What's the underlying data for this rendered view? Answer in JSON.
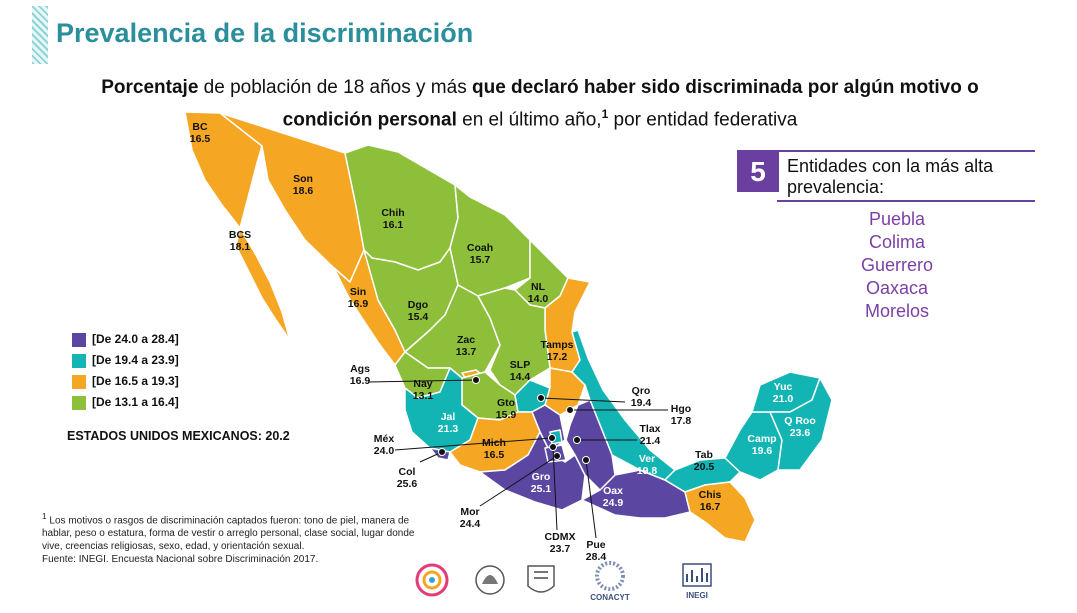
{
  "title": "Prevalencia de la discriminación",
  "subtitle": {
    "p1": "Porcentaje",
    "p2": " de población de 18 años y más ",
    "p3": "que declaró haber sido discriminada por algún motivo o condición personal",
    "p4": " en el último año,",
    "p5": "1",
    "p6": " por entidad federativa"
  },
  "colors": {
    "range1": "#5b47a2",
    "range2": "#13b5b4",
    "range3": "#f5a623",
    "range4": "#8dbf3b",
    "accent": "#6b3fa0",
    "title": "#2a8e9b"
  },
  "legend": [
    {
      "label": "[De 24.0 a 28.4]",
      "color": "#5b47a2"
    },
    {
      "label": "[De 19.4 a 23.9]",
      "color": "#13b5b4"
    },
    {
      "label": "[De 16.5 a 19.3]",
      "color": "#f5a623"
    },
    {
      "label": "[De 13.1 a 16.4]",
      "color": "#8dbf3b"
    }
  ],
  "national": "ESTADOS UNIDOS MEXICANOS: 20.2",
  "panel": {
    "number": "5",
    "heading": "Entidades con la más alta prevalencia:",
    "items": [
      "Puebla",
      "Colima",
      "Guerrero",
      "Oaxaca",
      "Morelos"
    ]
  },
  "states": [
    {
      "abbr": "BC",
      "value": "16.5"
    },
    {
      "abbr": "Son",
      "value": "18.6"
    },
    {
      "abbr": "BCS",
      "value": "18.1"
    },
    {
      "abbr": "Chih",
      "value": "16.1"
    },
    {
      "abbr": "Coah",
      "value": "15.7"
    },
    {
      "abbr": "NL",
      "value": "14.0"
    },
    {
      "abbr": "Sin",
      "value": "16.9"
    },
    {
      "abbr": "Dgo",
      "value": "15.4"
    },
    {
      "abbr": "Tamps",
      "value": "17.2"
    },
    {
      "abbr": "Zac",
      "value": "13.7"
    },
    {
      "abbr": "SLP",
      "value": "14.4"
    },
    {
      "abbr": "Ags",
      "value": "16.9"
    },
    {
      "abbr": "Nay",
      "value": "13.1"
    },
    {
      "abbr": "Gto",
      "value": "15.9"
    },
    {
      "abbr": "Qro",
      "value": "19.4"
    },
    {
      "abbr": "Hgo",
      "value": "17.8"
    },
    {
      "abbr": "Jal",
      "value": "21.3"
    },
    {
      "abbr": "Tlax",
      "value": "21.4"
    },
    {
      "abbr": "Méx",
      "value": "24.0"
    },
    {
      "abbr": "Mich",
      "value": "16.5"
    },
    {
      "abbr": "Col",
      "value": "25.6"
    },
    {
      "abbr": "Gro",
      "value": "25.1"
    },
    {
      "abbr": "Oax",
      "value": "24.9"
    },
    {
      "abbr": "Ver",
      "value": "19.8"
    },
    {
      "abbr": "Mor",
      "value": "24.4"
    },
    {
      "abbr": "CDMX",
      "value": "23.7"
    },
    {
      "abbr": "Pue",
      "value": "28.4"
    },
    {
      "abbr": "Tab",
      "value": "20.5"
    },
    {
      "abbr": "Chis",
      "value": "16.7"
    },
    {
      "abbr": "Camp",
      "value": "19.6"
    },
    {
      "abbr": "Yuc",
      "value": "21.0"
    },
    {
      "abbr": "Q Roo",
      "value": "23.6"
    }
  ],
  "footnote": {
    "mark": "1",
    "text": " Los motivos o rasgos de discriminación captados fueron: tono de piel, manera de hablar, peso o estatura, forma de vestir o arreglo personal, clase social, lugar donde vive, creencias religiosas, sexo, edad, y orientación sexual.",
    "source": "Fuente: INEGI. Encuesta Nacional sobre Discriminación 2017."
  },
  "logos": [
    {
      "name": "conapred-logo"
    },
    {
      "name": "cndh-logo"
    },
    {
      "name": "unam-logo"
    },
    {
      "name": "conacyt-logo",
      "text": "CONACYT"
    },
    {
      "name": "inegi-logo",
      "text": "INEGI"
    }
  ]
}
